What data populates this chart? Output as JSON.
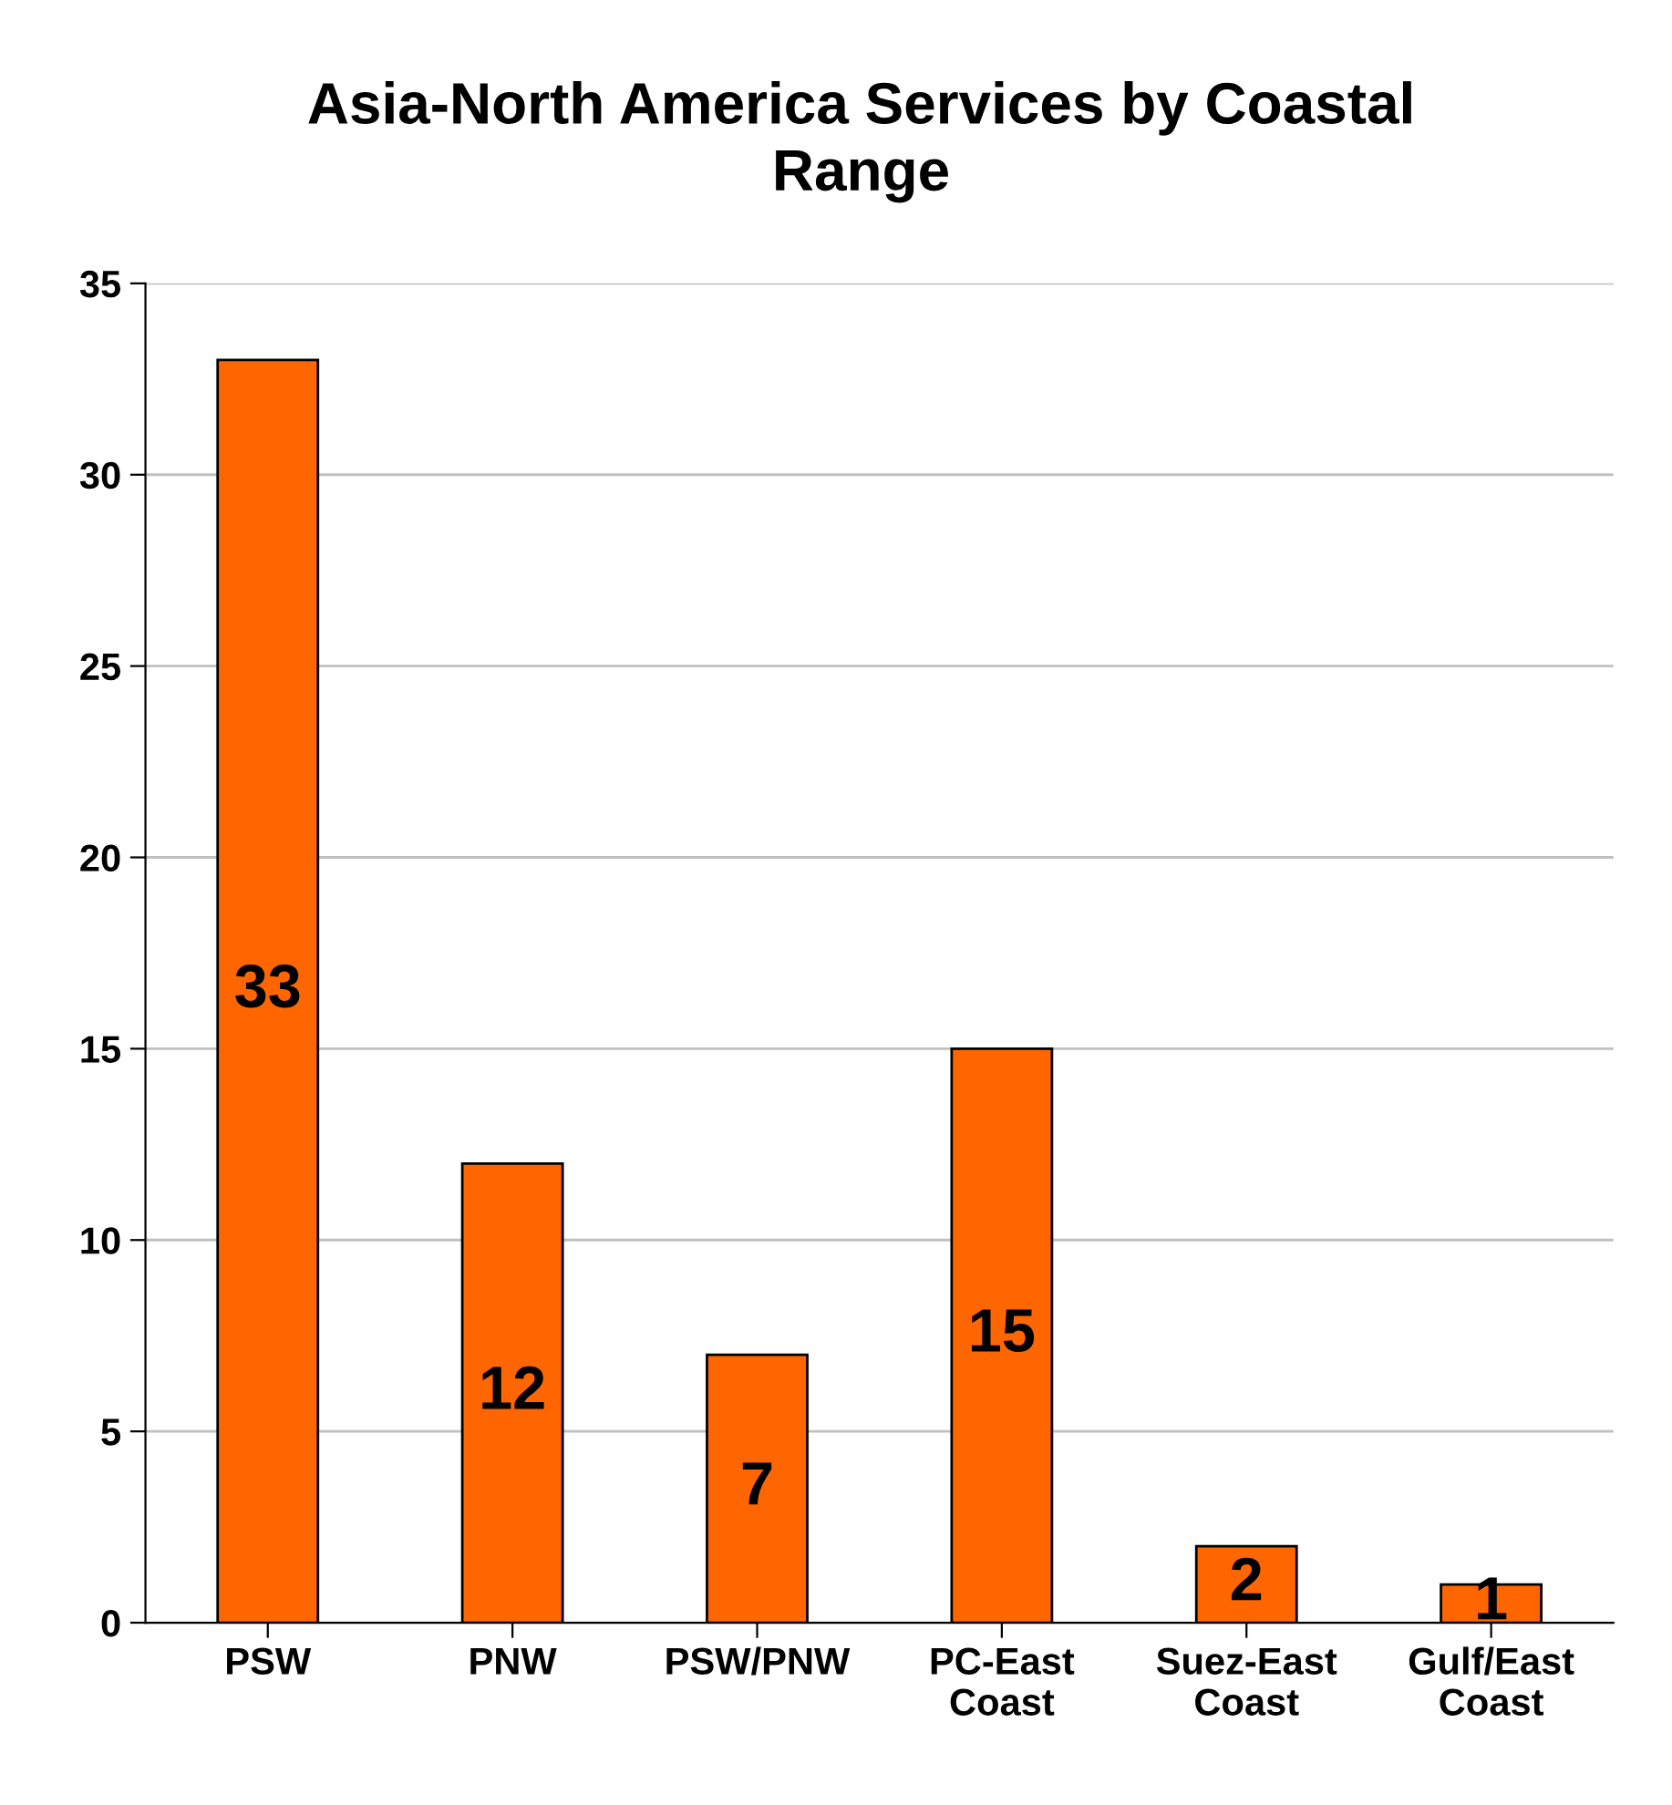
{
  "chart_data": {
    "type": "bar",
    "title": "Asia-North America Services by Coastal\nRange",
    "categories": [
      "PSW",
      "PNW",
      "PSW/PNW",
      "PC-East\nCoast",
      "Suez-East\nCoast",
      "Gulf/East\nCoast"
    ],
    "values": [
      33,
      12,
      7,
      15,
      2,
      1
    ],
    "color": "#ff6600",
    "ylim": [
      0,
      35
    ],
    "yticks": [
      0,
      5,
      10,
      15,
      20,
      25,
      30,
      35
    ],
    "grid": "y",
    "data_labels": true
  }
}
